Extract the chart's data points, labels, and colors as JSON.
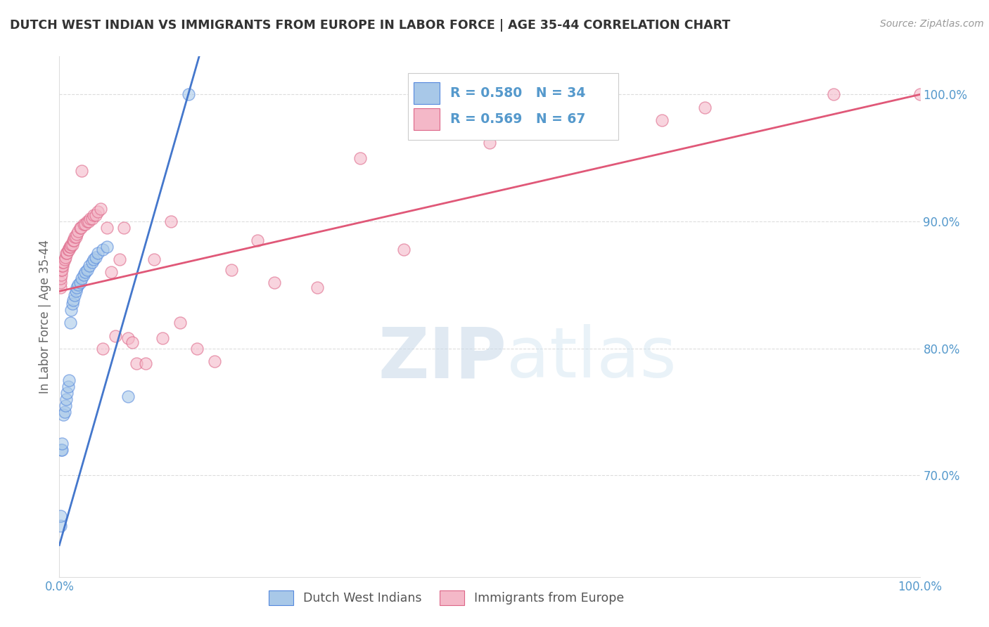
{
  "title": "DUTCH WEST INDIAN VS IMMIGRANTS FROM EUROPE IN LABOR FORCE | AGE 35-44 CORRELATION CHART",
  "source": "Source: ZipAtlas.com",
  "ylabel": "In Labor Force | Age 35-44",
  "xlim": [
    0.0,
    1.0
  ],
  "ylim": [
    0.62,
    1.03
  ],
  "y_ticks": [
    0.7,
    0.8,
    0.9,
    1.0
  ],
  "y_tick_labels": [
    "70.0%",
    "80.0%",
    "90.0%",
    "100.0%"
  ],
  "x_ticks": [
    0.0,
    0.2,
    0.4,
    0.6,
    0.8,
    1.0
  ],
  "x_tick_labels": [
    "0.0%",
    "",
    "",
    "",
    "",
    "100.0%"
  ],
  "legend_labels": [
    "Dutch West Indians",
    "Immigrants from Europe"
  ],
  "blue_color": "#a8c8e8",
  "pink_color": "#f4b8c8",
  "blue_line_color": "#4477cc",
  "pink_line_color": "#e05878",
  "blue_edge_color": "#5588dd",
  "pink_edge_color": "#dd6688",
  "R_blue": 0.58,
  "N_blue": 34,
  "R_pink": 0.569,
  "N_pink": 67,
  "watermark_zip": "ZIP",
  "watermark_atlas": "atlas",
  "grid_color": "#dddddd",
  "tick_color": "#5599cc",
  "blue_x": [
    0.001,
    0.001,
    0.002,
    0.003,
    0.003,
    0.005,
    0.006,
    0.007,
    0.008,
    0.009,
    0.01,
    0.011,
    0.013,
    0.014,
    0.015,
    0.016,
    0.018,
    0.019,
    0.02,
    0.022,
    0.024,
    0.026,
    0.028,
    0.03,
    0.032,
    0.035,
    0.038,
    0.04,
    0.042,
    0.045,
    0.05,
    0.055,
    0.08,
    0.15
  ],
  "blue_y": [
    0.66,
    0.668,
    0.72,
    0.72,
    0.725,
    0.748,
    0.75,
    0.755,
    0.76,
    0.765,
    0.77,
    0.775,
    0.82,
    0.83,
    0.835,
    0.838,
    0.842,
    0.845,
    0.848,
    0.85,
    0.852,
    0.855,
    0.858,
    0.86,
    0.862,
    0.865,
    0.868,
    0.87,
    0.872,
    0.875,
    0.878,
    0.88,
    0.762,
    1.0
  ],
  "pink_x": [
    0.001,
    0.001,
    0.001,
    0.002,
    0.002,
    0.003,
    0.003,
    0.004,
    0.004,
    0.005,
    0.006,
    0.007,
    0.008,
    0.009,
    0.01,
    0.011,
    0.012,
    0.013,
    0.014,
    0.015,
    0.016,
    0.017,
    0.018,
    0.019,
    0.02,
    0.022,
    0.024,
    0.025,
    0.026,
    0.028,
    0.03,
    0.032,
    0.034,
    0.036,
    0.038,
    0.04,
    0.042,
    0.045,
    0.048,
    0.05,
    0.055,
    0.06,
    0.065,
    0.07,
    0.075,
    0.08,
    0.085,
    0.09,
    0.1,
    0.11,
    0.12,
    0.13,
    0.14,
    0.16,
    0.18,
    0.2,
    0.23,
    0.25,
    0.3,
    0.35,
    0.4,
    0.5,
    0.6,
    0.7,
    0.75,
    0.9,
    1.0
  ],
  "pink_y": [
    0.848,
    0.852,
    0.855,
    0.858,
    0.862,
    0.862,
    0.865,
    0.865,
    0.868,
    0.868,
    0.87,
    0.872,
    0.875,
    0.875,
    0.878,
    0.878,
    0.88,
    0.88,
    0.882,
    0.882,
    0.885,
    0.885,
    0.888,
    0.888,
    0.89,
    0.892,
    0.895,
    0.895,
    0.94,
    0.898,
    0.898,
    0.9,
    0.9,
    0.902,
    0.902,
    0.905,
    0.905,
    0.908,
    0.91,
    0.8,
    0.895,
    0.86,
    0.81,
    0.87,
    0.895,
    0.808,
    0.805,
    0.788,
    0.788,
    0.87,
    0.808,
    0.9,
    0.82,
    0.8,
    0.79,
    0.862,
    0.885,
    0.852,
    0.848,
    0.95,
    0.878,
    0.962,
    0.97,
    0.98,
    0.99,
    1.0,
    1.0
  ]
}
